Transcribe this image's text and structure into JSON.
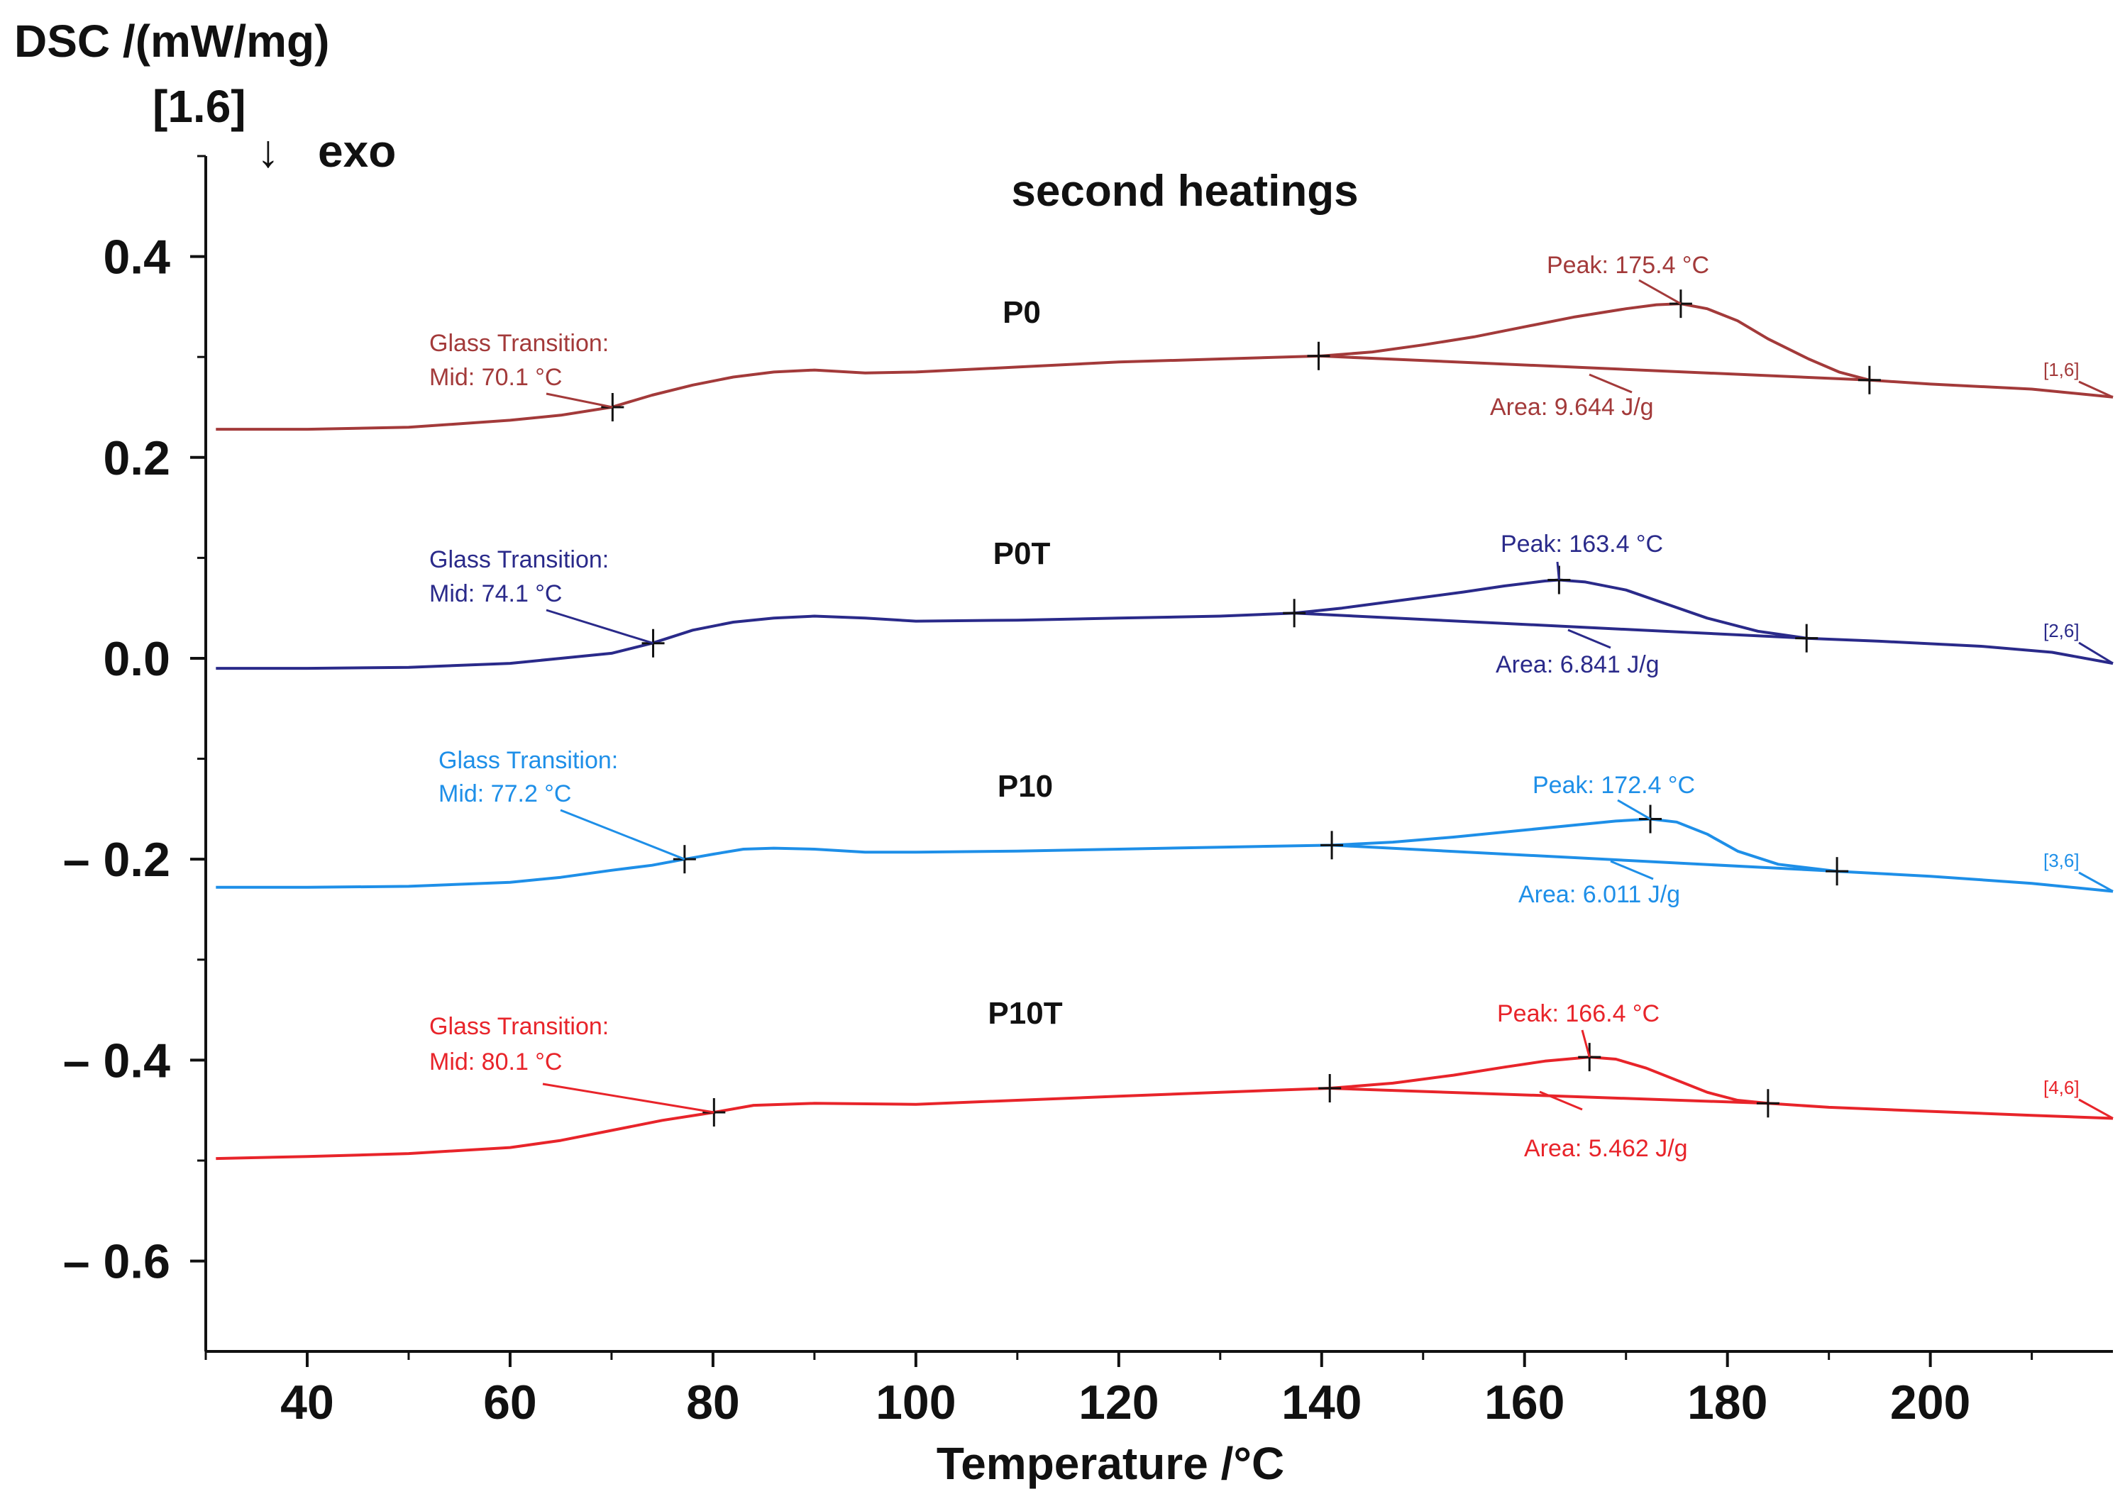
{
  "chart_data": {
    "type": "line",
    "title": "second heatings",
    "ylabel": "DSC /(mW/mg)",
    "ylabel_bracket": "[1.6]",
    "exo_arrow": "↓",
    "exo_label": "exo",
    "xlabel": "Temperature /°C",
    "xlim": [
      30,
      218
    ],
    "ylim": [
      -0.69,
      0.5
    ],
    "xticks": [
      40,
      60,
      80,
      100,
      120,
      140,
      160,
      180,
      200
    ],
    "xtick_labels": [
      "40",
      "60",
      "80",
      "100",
      "120",
      "140",
      "160",
      "180",
      "200"
    ],
    "yticks": [
      0.4,
      0.2,
      0.0,
      -0.2,
      -0.4,
      -0.6
    ],
    "ytick_labels": [
      "0.4",
      "0.2",
      "0.0",
      "– 0.2",
      "– 0.4",
      "– 0.6"
    ],
    "series": [
      {
        "name": "P0",
        "color": "#a33a3a",
        "bracket": "[1,6]",
        "x": [
          31,
          40,
          50,
          60,
          65,
          70,
          74,
          78,
          82,
          86,
          90,
          95,
          100,
          110,
          120,
          130,
          140,
          145,
          150,
          155,
          160,
          165,
          170,
          173,
          175.4,
          178,
          181,
          184,
          188,
          191,
          194,
          200,
          210,
          218
        ],
        "y": [
          0.228,
          0.228,
          0.23,
          0.237,
          0.242,
          0.25,
          0.262,
          0.272,
          0.28,
          0.285,
          0.287,
          0.284,
          0.285,
          0.29,
          0.295,
          0.298,
          0.301,
          0.305,
          0.312,
          0.32,
          0.33,
          0.34,
          0.348,
          0.352,
          0.353,
          0.348,
          0.336,
          0.318,
          0.298,
          0.285,
          0.277,
          0.273,
          0.268,
          0.26
        ],
        "baseline": {
          "x": [
            139.7,
            194
          ],
          "y": [
            0.301,
            0.277
          ]
        },
        "glass_transition_label": "Glass Transition:",
        "glass_transition_mid": "Mid: 70.1 °C",
        "tg": 70.1,
        "tg_y": 0.25,
        "peak_label": "Peak: 175.4 °C",
        "peak_x": 175.4,
        "peak_y": 0.353,
        "area_label": "Area: 9.644 J/g"
      },
      {
        "name": "P0T",
        "color": "#2a2a8a",
        "bracket": "[2,6]",
        "x": [
          31,
          40,
          50,
          60,
          65,
          70,
          74,
          78,
          82,
          86,
          90,
          95,
          100,
          110,
          120,
          130,
          137.3,
          142,
          148,
          154,
          158,
          162,
          163.4,
          166,
          170,
          174,
          178,
          183,
          187.8,
          195,
          205,
          212,
          218
        ],
        "y": [
          -0.01,
          -0.01,
          -0.009,
          -0.005,
          -0.0,
          0.005,
          0.015,
          0.028,
          0.036,
          0.04,
          0.042,
          0.04,
          0.037,
          0.038,
          0.04,
          0.042,
          0.045,
          0.05,
          0.058,
          0.066,
          0.072,
          0.077,
          0.078,
          0.076,
          0.068,
          0.054,
          0.04,
          0.027,
          0.02,
          0.017,
          0.012,
          0.006,
          -0.005
        ],
        "baseline": {
          "x": [
            137.3,
            187.8
          ],
          "y": [
            0.045,
            0.02
          ]
        },
        "glass_transition_label": "Glass Transition:",
        "glass_transition_mid": "Mid: 74.1 °C",
        "tg": 74.1,
        "tg_y": 0.015,
        "peak_label": "Peak: 163.4 °C",
        "peak_x": 163.4,
        "peak_y": 0.078,
        "area_label": "Area: 6.841 J/g"
      },
      {
        "name": "P10",
        "color": "#1e8fe8",
        "bracket": "[3,6]",
        "x": [
          31,
          40,
          50,
          60,
          65,
          70,
          74,
          77.2,
          80,
          83,
          86,
          90,
          95,
          100,
          110,
          120,
          130,
          141,
          147,
          153,
          159,
          165,
          169,
          172.4,
          175,
          178,
          181,
          185,
          190.8,
          200,
          210,
          218
        ],
        "y": [
          -0.228,
          -0.228,
          -0.227,
          -0.223,
          -0.218,
          -0.211,
          -0.206,
          -0.2,
          -0.195,
          -0.19,
          -0.189,
          -0.19,
          -0.193,
          -0.193,
          -0.192,
          -0.19,
          -0.188,
          -0.186,
          -0.183,
          -0.178,
          -0.172,
          -0.166,
          -0.162,
          -0.16,
          -0.163,
          -0.175,
          -0.192,
          -0.205,
          -0.212,
          -0.217,
          -0.224,
          -0.232
        ],
        "baseline": {
          "x": [
            141,
            190.8
          ],
          "y": [
            -0.186,
            -0.212
          ]
        },
        "glass_transition_label": "Glass Transition:",
        "glass_transition_mid": "Mid: 77.2 °C",
        "tg": 77.2,
        "tg_y": -0.2,
        "peak_label": "Peak: 172.4 °C",
        "peak_x": 172.4,
        "peak_y": -0.16,
        "area_label": "Area: 6.011 J/g"
      },
      {
        "name": "P10T",
        "color": "#e8242a",
        "bracket": "[4,6]",
        "x": [
          31,
          40,
          50,
          60,
          65,
          70,
          75,
          80.1,
          84,
          90,
          100,
          110,
          120,
          130,
          140.8,
          147,
          153,
          158,
          162,
          166.4,
          169,
          172,
          175,
          178,
          181,
          184,
          190,
          200,
          210,
          218
        ],
        "y": [
          -0.498,
          -0.496,
          -0.493,
          -0.487,
          -0.48,
          -0.47,
          -0.46,
          -0.452,
          -0.445,
          -0.443,
          -0.444,
          -0.44,
          -0.436,
          -0.432,
          -0.428,
          -0.423,
          -0.415,
          -0.407,
          -0.401,
          -0.397,
          -0.399,
          -0.408,
          -0.42,
          -0.432,
          -0.44,
          -0.443,
          -0.447,
          -0.451,
          -0.455,
          -0.458
        ],
        "baseline": {
          "x": [
            140.8,
            184
          ],
          "y": [
            -0.428,
            -0.443
          ]
        },
        "glass_transition_label": "Glass Transition:",
        "glass_transition_mid": "Mid: 80.1 °C",
        "tg": 80.1,
        "tg_y": -0.452,
        "peak_label": "Peak: 166.4 °C",
        "peak_x": 166.4,
        "peak_y": -0.397,
        "area_label": "Area: 5.462 J/g"
      }
    ]
  }
}
